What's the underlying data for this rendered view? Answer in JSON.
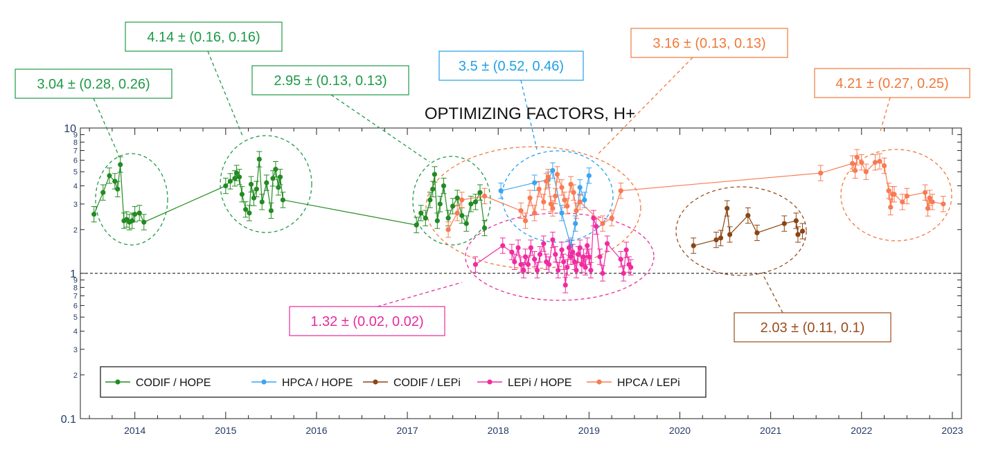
{
  "chart_data": {
    "type": "scatter",
    "title": "OPTIMIZING FACTORS, H+",
    "xlabel": "",
    "ylabel": "",
    "yscale": "log",
    "xlim": [
      2013.4,
      2023.1
    ],
    "ylim": [
      0.1,
      10
    ],
    "x_ticks": [
      2014,
      2015,
      2016,
      2017,
      2018,
      2019,
      2020,
      2021,
      2022,
      2023
    ],
    "y_tick_labels": [
      "0.1",
      "1",
      "10"
    ],
    "y_minor_labels": [
      "2",
      "3",
      "4",
      "5",
      "6",
      "7",
      "8",
      "9",
      "2",
      "3",
      "4",
      "5",
      "6",
      "7",
      "8",
      "9"
    ],
    "reference_line": {
      "y": 1,
      "style": "dashed",
      "color": "#000000"
    },
    "legend": {
      "placement": "lower-left",
      "entries": [
        "CODIF / HOPE",
        "HPCA / HOPE",
        "CODIF / LEPi",
        "LEPi / HOPE",
        "HPCA / LEPi"
      ]
    },
    "series": [
      {
        "name": "CODIF / HOPE",
        "color": "#228B22",
        "x": [
          2013.55,
          2013.65,
          2013.72,
          2013.78,
          2013.81,
          2013.84,
          2013.88,
          2013.91,
          2013.94,
          2013.97,
          2014.0,
          2014.05,
          2014.1,
          2015.0,
          2015.05,
          2015.1,
          2015.12,
          2015.15,
          2015.18,
          2015.22,
          2015.26,
          2015.28,
          2015.31,
          2015.34,
          2015.37,
          2015.4,
          2015.45,
          2015.5,
          2015.52,
          2015.55,
          2015.58,
          2015.6,
          2015.63,
          2017.1,
          2017.15,
          2017.2,
          2017.25,
          2017.28,
          2017.3,
          2017.33,
          2017.36,
          2017.4,
          2017.45,
          2017.5,
          2017.55,
          2017.6,
          2017.65,
          2017.7,
          2017.75,
          2017.8,
          2017.85
        ],
        "y": [
          2.55,
          3.6,
          4.7,
          4.3,
          3.8,
          5.6,
          2.3,
          2.35,
          2.25,
          2.3,
          2.55,
          2.6,
          2.25,
          4.0,
          4.3,
          4.5,
          4.9,
          4.6,
          3.5,
          2.75,
          2.6,
          4.1,
          3.3,
          3.8,
          6.1,
          3.1,
          4.2,
          2.7,
          4.5,
          5.2,
          3.9,
          4.6,
          3.2,
          2.15,
          2.6,
          2.4,
          3.2,
          3.8,
          4.8,
          2.3,
          3.0,
          4.0,
          2.4,
          2.9,
          3.3,
          2.5,
          2.2,
          3.0,
          3.1,
          3.6,
          2.05
        ]
      },
      {
        "name": "HPCA / HOPE",
        "color": "#3BA4F0",
        "x": [
          2018.03,
          2018.4,
          2018.55,
          2018.6,
          2018.7,
          2018.8,
          2018.85,
          2018.9,
          2018.95,
          2019.0
        ],
        "y": [
          3.7,
          4.2,
          4.4,
          5.1,
          2.6,
          1.55,
          2.2,
          3.9,
          3.2,
          4.7
        ]
      },
      {
        "name": "CODIF / LEPi",
        "color": "#8B4513",
        "x": [
          2020.15,
          2020.4,
          2020.45,
          2020.52,
          2020.55,
          2020.75,
          2020.85,
          2021.15,
          2021.28,
          2021.3,
          2021.35
        ],
        "y": [
          1.55,
          1.7,
          1.75,
          2.8,
          1.85,
          2.5,
          1.9,
          2.2,
          2.3,
          1.85,
          1.95
        ]
      },
      {
        "name": "LEPi / HOPE",
        "color": "#F02BA0",
        "x": [
          2017.75,
          2018.05,
          2018.15,
          2018.18,
          2018.22,
          2018.25,
          2018.28,
          2018.3,
          2018.33,
          2018.36,
          2018.4,
          2018.43,
          2018.46,
          2018.5,
          2018.53,
          2018.56,
          2018.6,
          2018.63,
          2018.66,
          2018.7,
          2018.72,
          2018.74,
          2018.76,
          2018.78,
          2018.8,
          2018.82,
          2018.84,
          2018.86,
          2018.88,
          2018.9,
          2018.92,
          2018.94,
          2018.96,
          2018.98,
          2019.0,
          2019.02,
          2019.05,
          2019.08,
          2019.12,
          2019.15,
          2019.2,
          2019.35,
          2019.38,
          2019.41,
          2019.44,
          2019.46
        ],
        "y": [
          1.15,
          1.55,
          1.4,
          1.2,
          1.5,
          1.15,
          1.05,
          1.3,
          1.15,
          1.5,
          1.25,
          1.05,
          1.35,
          1.6,
          1.2,
          1.15,
          1.7,
          1.35,
          1.05,
          1.45,
          1.2,
          0.83,
          1.1,
          1.5,
          1.3,
          1.4,
          1.2,
          1.05,
          1.35,
          1.5,
          1.15,
          1.3,
          1.1,
          1.55,
          1.3,
          1.05,
          2.4,
          2.1,
          1.3,
          1.0,
          1.6,
          1.25,
          1.0,
          1.45,
          1.15,
          1.1
        ]
      },
      {
        "name": "HPCA / LEPi",
        "color": "#F87B53",
        "x": [
          2017.45,
          2017.55,
          2017.6,
          2017.85,
          2018.25,
          2018.3,
          2018.35,
          2018.4,
          2018.45,
          2018.5,
          2018.53,
          2018.55,
          2018.58,
          2018.6,
          2018.63,
          2018.65,
          2018.7,
          2018.73,
          2018.76,
          2018.8,
          2018.83,
          2018.86,
          2018.9,
          2019.15,
          2019.25,
          2019.35,
          2021.55,
          2021.9,
          2021.93,
          2021.95,
          2022.0,
          2022.05,
          2022.15,
          2022.2,
          2022.25,
          2022.3,
          2022.32,
          2022.34,
          2022.36,
          2022.45,
          2022.5,
          2022.7,
          2022.73,
          2022.75,
          2022.78,
          2022.9
        ],
        "y": [
          2.0,
          2.6,
          3.2,
          3.4,
          2.7,
          2.3,
          3.3,
          2.6,
          3.8,
          3.1,
          4.3,
          4.6,
          3.0,
          2.8,
          3.4,
          4.8,
          3.9,
          3.2,
          2.9,
          4.1,
          3.6,
          2.7,
          3.1,
          2.2,
          2.4,
          3.7,
          4.9,
          5.7,
          5.1,
          6.3,
          5.8,
          5.0,
          5.8,
          5.9,
          5.5,
          3.7,
          2.85,
          3.5,
          3.5,
          3.1,
          3.4,
          3.6,
          2.8,
          3.3,
          3.1,
          3.0
        ]
      }
    ],
    "annotations": [
      {
        "text": "3.04 ± (0.28, 0.26)",
        "color": "#1E9A47"
      },
      {
        "text": "4.14 ± (0.16, 0.16)",
        "color": "#1E9A47"
      },
      {
        "text": "2.95 ± (0.13, 0.13)",
        "color": "#1E9A47"
      },
      {
        "text": "3.5 ± (0.52, 0.46)",
        "color": "#1EA0E6"
      },
      {
        "text": "3.16 ± (0.13, 0.13)",
        "color": "#F07838"
      },
      {
        "text": "4.21 ± (0.27, 0.25)",
        "color": "#F07838"
      },
      {
        "text": "1.32 ± (0.02, 0.02)",
        "color": "#E62C9C"
      },
      {
        "text": "2.03 ± (0.11, 0.1)",
        "color": "#9A4C1C"
      }
    ]
  }
}
